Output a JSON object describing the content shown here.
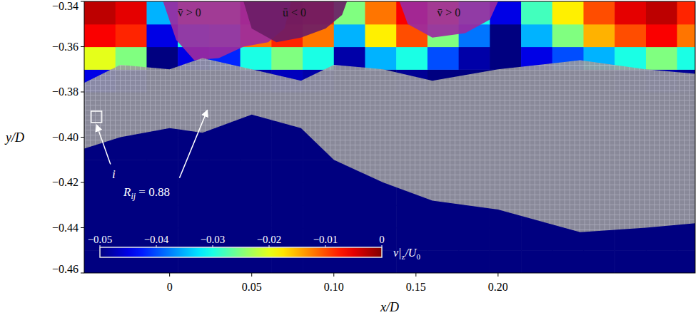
{
  "chart_data": {
    "type": "heatmap",
    "x_label": "x/D",
    "y_label": "y/D",
    "xlim": [
      -0.052,
      0.32
    ],
    "ylim": [
      -0.46,
      -0.34
    ],
    "xticks": [
      0,
      0.05,
      {
        "value": 0.1,
        "label": "0.10"
      },
      0.15,
      {
        "value": 0.2,
        "label": "0.20"
      }
    ],
    "yticks": [
      {
        "value": -0.46,
        "label": "−0.46"
      },
      {
        "value": -0.44,
        "label": "−0.44"
      },
      {
        "value": -0.42,
        "label": "−0.42"
      },
      {
        "value": -0.4,
        "label": "−0.40"
      },
      {
        "value": -0.38,
        "label": "−0.38"
      },
      {
        "value": -0.36,
        "label": "−0.36"
      },
      {
        "value": -0.34,
        "label": "−0.34"
      }
    ],
    "cells": {
      "x_edges": [
        -0.052,
        -0.033,
        -0.014,
        0.005,
        0.024,
        0.043,
        0.062,
        0.081,
        0.1,
        0.119,
        0.138,
        0.157,
        0.176,
        0.195,
        0.214,
        0.233,
        0.252,
        0.271,
        0.29,
        0.309,
        0.32
      ],
      "y_edges": [
        -0.46,
        -0.45,
        -0.44,
        -0.43,
        -0.42,
        -0.41,
        -0.4,
        -0.39,
        -0.38,
        -0.37,
        -0.36,
        -0.35,
        -0.34
      ],
      "values": [
        [
          -0.05,
          -0.05,
          -0.05,
          -0.05,
          -0.05,
          -0.05,
          -0.05,
          -0.05,
          -0.05,
          -0.05,
          -0.05,
          -0.05,
          -0.05,
          -0.05,
          -0.05,
          -0.05,
          -0.05,
          -0.05,
          -0.05,
          -0.05
        ],
        [
          -0.05,
          -0.05,
          -0.05,
          -0.05,
          -0.05,
          -0.05,
          -0.05,
          -0.05,
          -0.05,
          -0.05,
          -0.05,
          -0.05,
          -0.05,
          -0.05,
          -0.05,
          -0.05,
          -0.05,
          -0.05,
          -0.05,
          -0.05
        ],
        [
          -0.05,
          -0.05,
          -0.05,
          -0.05,
          -0.05,
          -0.05,
          -0.05,
          -0.05,
          -0.05,
          -0.05,
          -0.05,
          -0.05,
          -0.05,
          -0.05,
          -0.05,
          -0.05,
          -0.05,
          -0.05,
          -0.05,
          -0.05
        ],
        [
          -0.05,
          -0.05,
          -0.05,
          -0.05,
          -0.05,
          -0.05,
          -0.05,
          -0.05,
          -0.05,
          -0.05,
          -0.05,
          -0.05,
          -0.05,
          -0.05,
          -0.05,
          -0.05,
          -0.05,
          -0.05,
          -0.05,
          -0.05
        ],
        [
          -0.05,
          -0.05,
          -0.05,
          -0.05,
          -0.05,
          -0.05,
          -0.05,
          -0.05,
          -0.05,
          -0.05,
          -0.05,
          -0.05,
          -0.05,
          -0.05,
          -0.05,
          -0.05,
          -0.05,
          -0.05,
          -0.05,
          -0.05
        ],
        [
          -0.05,
          -0.05,
          -0.05,
          -0.05,
          -0.05,
          -0.05,
          -0.05,
          -0.05,
          -0.05,
          -0.05,
          -0.05,
          -0.05,
          -0.05,
          -0.05,
          -0.05,
          -0.05,
          -0.05,
          -0.05,
          -0.05,
          -0.05
        ],
        [
          -0.05,
          -0.05,
          -0.05,
          -0.05,
          -0.05,
          -0.05,
          -0.05,
          -0.05,
          -0.05,
          -0.05,
          -0.05,
          -0.05,
          -0.05,
          -0.05,
          -0.05,
          -0.05,
          -0.05,
          -0.05,
          -0.05,
          -0.05
        ],
        [
          -0.05,
          -0.05,
          -0.05,
          -0.05,
          -0.05,
          -0.05,
          -0.05,
          -0.05,
          -0.05,
          -0.05,
          -0.05,
          -0.05,
          -0.05,
          -0.05,
          -0.05,
          -0.05,
          -0.05,
          -0.05,
          -0.05,
          -0.05
        ],
        [
          -0.045,
          -0.047,
          -0.05,
          -0.05,
          -0.05,
          -0.048,
          -0.047,
          -0.048,
          -0.05,
          -0.05,
          -0.049,
          -0.05,
          -0.05,
          -0.05,
          -0.05,
          -0.05,
          -0.05,
          -0.049,
          -0.048,
          -0.049
        ],
        [
          -0.02,
          -0.025,
          -0.05,
          -0.045,
          -0.042,
          -0.03,
          -0.025,
          -0.03,
          -0.048,
          -0.035,
          -0.03,
          -0.04,
          -0.048,
          -0.05,
          -0.045,
          -0.04,
          -0.035,
          -0.03,
          -0.025,
          -0.03
        ],
        [
          -0.006,
          -0.008,
          -0.045,
          -0.03,
          -0.028,
          -0.012,
          -0.008,
          -0.012,
          -0.035,
          -0.018,
          -0.01,
          -0.025,
          -0.038,
          -0.05,
          -0.035,
          -0.025,
          -0.015,
          -0.01,
          -0.006,
          -0.012
        ],
        [
          -0.003,
          -0.005,
          -0.035,
          -0.02,
          -0.02,
          -0.008,
          -0.004,
          -0.008,
          -0.025,
          -0.012,
          -0.006,
          -0.018,
          -0.03,
          -0.045,
          -0.028,
          -0.018,
          -0.01,
          -0.005,
          -0.003,
          -0.008
        ]
      ]
    },
    "colorbar": {
      "range": [
        -0.05,
        0
      ],
      "ticks": [
        {
          "value": -0.05,
          "label": "−0.05"
        },
        {
          "value": -0.04,
          "label": "−0.04"
        },
        {
          "value": -0.03,
          "label": "−0.03"
        },
        {
          "value": -0.02,
          "label": "−0.02"
        },
        {
          "value": -0.01,
          "label": "−0.01"
        },
        0
      ],
      "label": [
        {
          "text": "v|",
          "sub": false
        },
        {
          "text": "z",
          "sub": true
        },
        {
          "text": "/U",
          "sub": false
        },
        {
          "text": "0",
          "sub": true
        }
      ]
    },
    "band": {
      "x": [
        -0.052,
        -0.03,
        0.0,
        0.02,
        0.05,
        0.08,
        0.1,
        0.13,
        0.16,
        0.2,
        0.25,
        0.29,
        0.32
      ],
      "y_upper": [
        -0.376,
        -0.368,
        -0.37,
        -0.365,
        -0.37,
        -0.375,
        -0.368,
        -0.37,
        -0.375,
        -0.37,
        -0.366,
        -0.37,
        -0.372
      ],
      "y_lower": [
        -0.405,
        -0.4,
        -0.396,
        -0.398,
        -0.39,
        -0.396,
        -0.41,
        -0.42,
        -0.428,
        -0.432,
        -0.442,
        -0.44,
        -0.438
      ]
    },
    "regions": [
      {
        "label": "v̄ > 0",
        "color": "#9b2aa0",
        "x": [
          -0.004,
          0.004,
          0.015,
          0.03,
          0.045,
          0.06,
          0.07,
          0.074
        ],
        "y": [
          -0.34,
          -0.357,
          -0.366,
          -0.365,
          -0.36,
          -0.358,
          -0.352,
          -0.34
        ],
        "label_x": 0.012,
        "label_y": -0.345
      },
      {
        "label": "ū < 0",
        "color": "#6b1d66",
        "x": [
          0.045,
          0.05,
          0.065,
          0.08,
          0.095,
          0.105,
          0.108
        ],
        "y": [
          -0.34,
          -0.352,
          -0.358,
          -0.356,
          -0.352,
          -0.346,
          -0.34
        ],
        "label_x": 0.076,
        "label_y": -0.345
      },
      {
        "label": "v̄ > 0",
        "color": "#9b2aa0",
        "x": [
          0.14,
          0.145,
          0.16,
          0.18,
          0.195,
          0.2
        ],
        "y": [
          -0.34,
          -0.35,
          -0.356,
          -0.354,
          -0.348,
          -0.34
        ],
        "label_x": 0.17,
        "label_y": -0.345
      }
    ],
    "box": {
      "x": [
        -0.0478,
        -0.0413
      ],
      "y": [
        -0.3935,
        -0.3885
      ]
    },
    "annotations": [
      {
        "text": "i",
        "sub": "",
        "x": -0.034,
        "y": -0.418,
        "arrow_from": [
          -0.036,
          -0.412
        ],
        "arrow_to": [
          -0.0445,
          -0.3945
        ]
      },
      {
        "text": "R",
        "sub": "ij",
        "suffix": " = 0.88",
        "x": -0.014,
        "y": -0.426,
        "arrow_from": [
          0.006,
          -0.418
        ],
        "arrow_to": [
          0.023,
          -0.388
        ]
      }
    ]
  }
}
